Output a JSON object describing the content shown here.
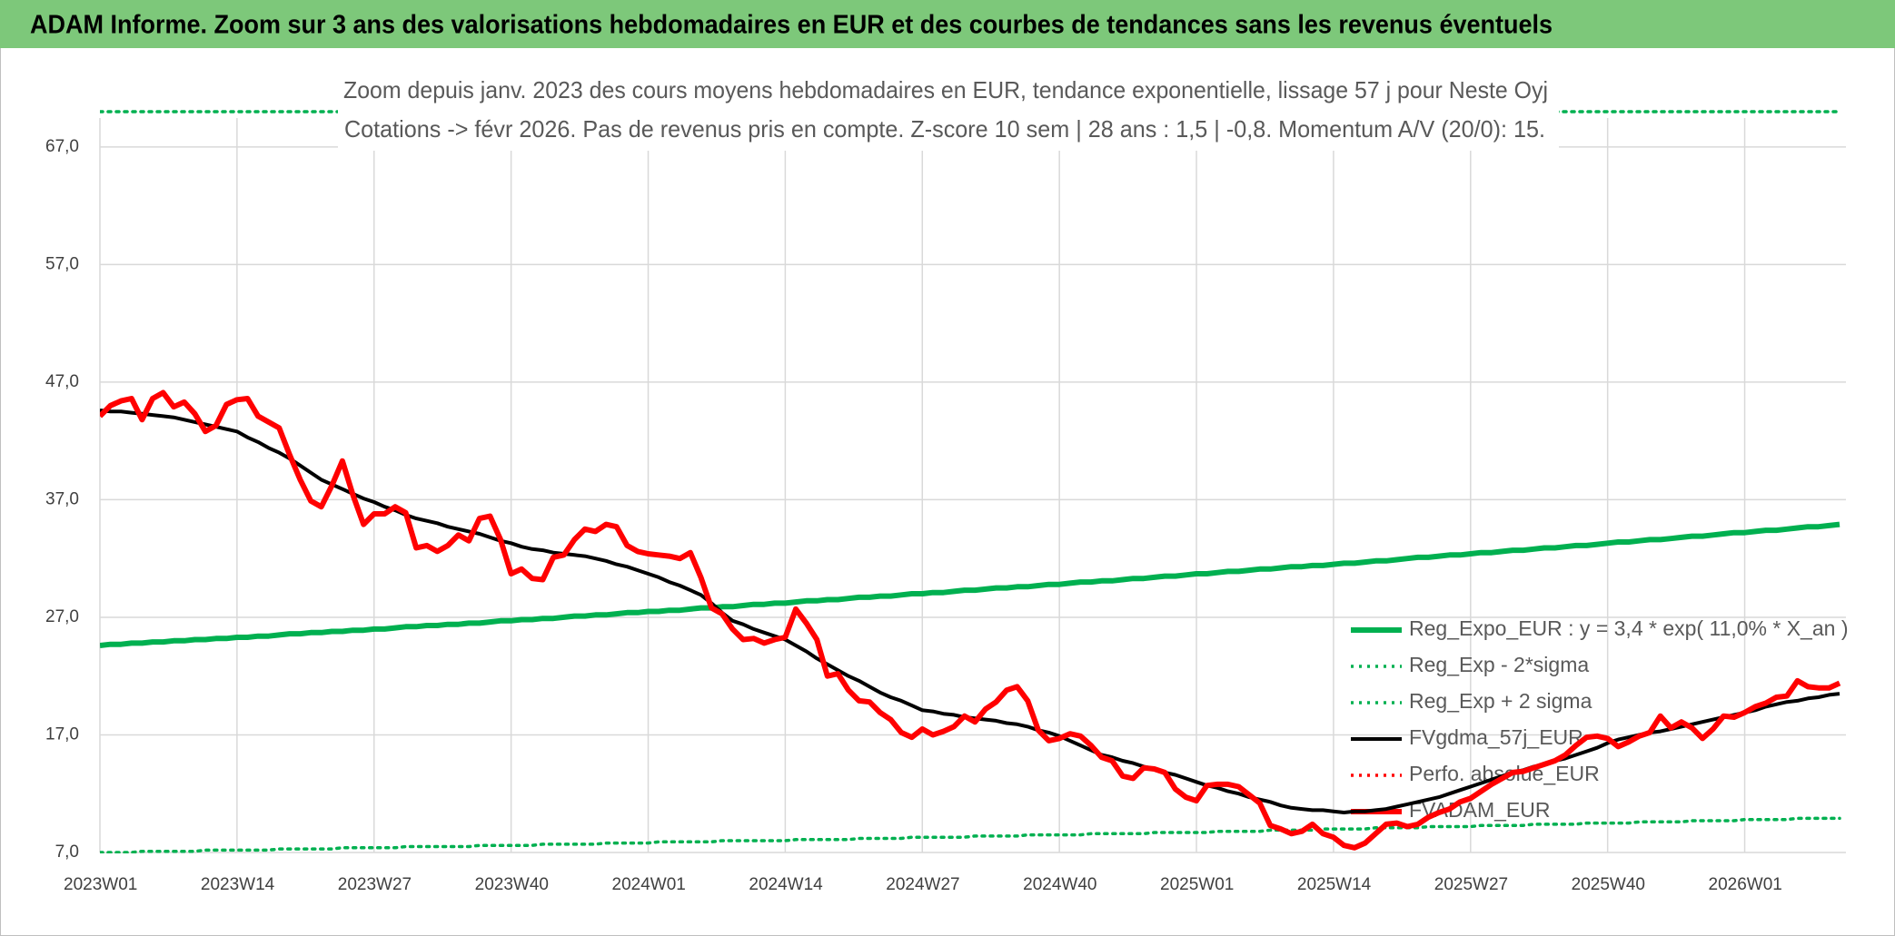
{
  "chart_data": {
    "type": "line",
    "title": "ADAM Informe. Zoom sur 3 ans des valorisations hebdomadaires en EUR et des courbes de tendances sans les revenus éventuels",
    "subtitle": [
      "Zoom depuis janv. 2023 des cours moyens hebdomadaires en EUR, tendance exponentielle, lissage 57 j pour Neste Oyj",
      "Cotations -> févr 2026. Pas de revenus pris en compte. Z-score 10 sem | 28 ans : 1,5 | -0,8. Momentum A/V (20/0): 15."
    ],
    "categories": [
      "2023W01",
      null,
      null,
      null,
      null,
      null,
      null,
      null,
      null,
      null,
      null,
      null,
      null,
      "2023W14",
      null,
      null,
      null,
      null,
      null,
      null,
      null,
      null,
      null,
      null,
      null,
      null,
      "2023W27",
      null,
      null,
      null,
      null,
      null,
      null,
      null,
      null,
      null,
      null,
      null,
      null,
      "2023W40",
      null,
      null,
      null,
      null,
      null,
      null,
      null,
      null,
      null,
      null,
      null,
      null,
      "2024W01",
      null,
      null,
      null,
      null,
      null,
      null,
      null,
      null,
      null,
      null,
      null,
      null,
      "2024W14",
      null,
      null,
      null,
      null,
      null,
      null,
      null,
      null,
      null,
      null,
      null,
      null,
      "2024W27",
      null,
      null,
      null,
      null,
      null,
      null,
      null,
      null,
      null,
      null,
      null,
      null,
      "2024W40",
      null,
      null,
      null,
      null,
      null,
      null,
      null,
      null,
      null,
      null,
      null,
      null,
      "2025W01",
      null,
      null,
      null,
      null,
      null,
      null,
      null,
      null,
      null,
      null,
      null,
      null,
      "2025W14",
      null,
      null,
      null,
      null,
      null,
      null,
      null,
      null,
      null,
      null,
      null,
      null,
      "2025W27",
      null,
      null,
      null,
      null,
      null,
      null,
      null,
      null,
      null,
      null,
      null,
      null,
      "2025W40",
      null,
      null,
      null,
      null,
      null,
      null,
      null,
      null,
      null,
      null,
      null,
      null,
      "2026W01",
      null,
      null,
      null,
      null,
      null,
      null,
      null,
      null,
      null
    ],
    "ylim": [
      7,
      71
    ],
    "yticks": [
      {
        "value": 7,
        "label": "7,0"
      },
      {
        "value": 17,
        "label": "17,0"
      },
      {
        "value": 27,
        "label": "27,0"
      },
      {
        "value": 37,
        "label": "37,0"
      },
      {
        "value": 47,
        "label": "47,0"
      },
      {
        "value": 57,
        "label": "57,0"
      },
      {
        "value": 67,
        "label": "67,0"
      }
    ],
    "grid": true,
    "legend": "lower right",
    "series": [
      {
        "name": "Reg_Expo_EUR : y = 3,4 * exp( 11,0% *  X_an )",
        "color": "#00b050",
        "line_style": "thick",
        "values": [
          24.6,
          24.7,
          24.7,
          24.8,
          24.8,
          24.9,
          24.9,
          25.0,
          25.0,
          25.1,
          25.1,
          25.2,
          25.2,
          25.3,
          25.3,
          25.4,
          25.4,
          25.5,
          25.6,
          25.6,
          25.7,
          25.7,
          25.8,
          25.8,
          25.9,
          25.9,
          26.0,
          26.0,
          26.1,
          26.2,
          26.2,
          26.3,
          26.3,
          26.4,
          26.4,
          26.5,
          26.5,
          26.6,
          26.7,
          26.7,
          26.8,
          26.8,
          26.9,
          26.9,
          27.0,
          27.1,
          27.1,
          27.2,
          27.2,
          27.3,
          27.4,
          27.4,
          27.5,
          27.5,
          27.6,
          27.6,
          27.7,
          27.8,
          27.8,
          27.9,
          27.9,
          28.0,
          28.1,
          28.1,
          28.2,
          28.2,
          28.3,
          28.4,
          28.4,
          28.5,
          28.5,
          28.6,
          28.7,
          28.7,
          28.8,
          28.8,
          28.9,
          29.0,
          29.0,
          29.1,
          29.1,
          29.2,
          29.3,
          29.3,
          29.4,
          29.5,
          29.5,
          29.6,
          29.6,
          29.7,
          29.8,
          29.8,
          29.9,
          30.0,
          30.0,
          30.1,
          30.1,
          30.2,
          30.3,
          30.3,
          30.4,
          30.5,
          30.5,
          30.6,
          30.7,
          30.7,
          30.8,
          30.9,
          30.9,
          31.0,
          31.1,
          31.1,
          31.2,
          31.3,
          31.3,
          31.4,
          31.4,
          31.5,
          31.6,
          31.6,
          31.7,
          31.8,
          31.8,
          31.9,
          32.0,
          32.1,
          32.1,
          32.2,
          32.3,
          32.3,
          32.4,
          32.5,
          32.5,
          32.6,
          32.7,
          32.7,
          32.8,
          32.9,
          32.9,
          33.0,
          33.1,
          33.1,
          33.2,
          33.3,
          33.4,
          33.4,
          33.5,
          33.6,
          33.6,
          33.7,
          33.8,
          33.9,
          33.9,
          34.0,
          34.1,
          34.2,
          34.2,
          34.3,
          34.4,
          34.4,
          34.5,
          34.6,
          34.7,
          34.7,
          34.8,
          34.9
        ]
      },
      {
        "name": "Reg_Exp - 2*sigma",
        "color": "#00b050",
        "line_style": "dotted",
        "values": [
          7.0,
          7.0,
          7.0,
          7.0,
          7.1,
          7.1,
          7.1,
          7.1,
          7.1,
          7.1,
          7.2,
          7.2,
          7.2,
          7.2,
          7.2,
          7.2,
          7.2,
          7.3,
          7.3,
          7.3,
          7.3,
          7.3,
          7.3,
          7.4,
          7.4,
          7.4,
          7.4,
          7.4,
          7.4,
          7.5,
          7.5,
          7.5,
          7.5,
          7.5,
          7.5,
          7.5,
          7.6,
          7.6,
          7.6,
          7.6,
          7.6,
          7.6,
          7.7,
          7.7,
          7.7,
          7.7,
          7.7,
          7.7,
          7.8,
          7.8,
          7.8,
          7.8,
          7.8,
          7.9,
          7.9,
          7.9,
          7.9,
          7.9,
          7.9,
          8.0,
          8.0,
          8.0,
          8.0,
          8.0,
          8.0,
          8.0,
          8.1,
          8.1,
          8.1,
          8.1,
          8.1,
          8.1,
          8.2,
          8.2,
          8.2,
          8.2,
          8.2,
          8.3,
          8.3,
          8.3,
          8.3,
          8.3,
          8.3,
          8.4,
          8.4,
          8.4,
          8.4,
          8.4,
          8.5,
          8.5,
          8.5,
          8.5,
          8.5,
          8.5,
          8.6,
          8.6,
          8.6,
          8.6,
          8.6,
          8.6,
          8.7,
          8.7,
          8.7,
          8.7,
          8.7,
          8.7,
          8.8,
          8.8,
          8.8,
          8.8,
          8.8,
          8.9,
          8.9,
          8.9,
          8.9,
          8.9,
          9.0,
          9.0,
          9.0,
          9.0,
          9.0,
          9.1,
          9.1,
          9.1,
          9.1,
          9.1,
          9.2,
          9.2,
          9.2,
          9.2,
          9.2,
          9.3,
          9.3,
          9.3,
          9.3,
          9.3,
          9.4,
          9.4,
          9.4,
          9.4,
          9.4,
          9.5,
          9.5,
          9.5,
          9.5,
          9.5,
          9.6,
          9.6,
          9.6,
          9.6,
          9.6,
          9.7,
          9.7,
          9.7,
          9.7,
          9.7,
          9.8,
          9.8,
          9.8,
          9.8,
          9.8,
          9.9,
          9.9,
          9.9,
          9.9,
          9.9
        ]
      },
      {
        "name": "Reg_Exp + 2 sigma",
        "color": "#00b050",
        "line_style": "dotted",
        "values": [
          70,
          70,
          70,
          70,
          70,
          70,
          70,
          70,
          70,
          70,
          70,
          70,
          70,
          70,
          70,
          70,
          70,
          70,
          70,
          70,
          70,
          70,
          70,
          70,
          70,
          70,
          70,
          70,
          70,
          70,
          70,
          70,
          70,
          70,
          70,
          70,
          70,
          70,
          70,
          70,
          70,
          70,
          70,
          70,
          70,
          70,
          70,
          70,
          70,
          70,
          70,
          70,
          70,
          70,
          70,
          70,
          70,
          70,
          70,
          70,
          70,
          70,
          70,
          70,
          70,
          70,
          70,
          70,
          70,
          70,
          70,
          70,
          70,
          70,
          70,
          70,
          70,
          70,
          70,
          70,
          70,
          70,
          70,
          70,
          70,
          70,
          70,
          70,
          70,
          70,
          70,
          70,
          70,
          70,
          70,
          70,
          70,
          70,
          70,
          70,
          70,
          70,
          70,
          70,
          70,
          70,
          70,
          70,
          70,
          70,
          70,
          70,
          70,
          70,
          70,
          70,
          70,
          70,
          70,
          70,
          70,
          70,
          70,
          70,
          70,
          70,
          70,
          70,
          70,
          70,
          70,
          70,
          70,
          70,
          70,
          70,
          70,
          70,
          70,
          70,
          70,
          70,
          70,
          70,
          70,
          70,
          70,
          70,
          70,
          70,
          70,
          70,
          70,
          70,
          70,
          70,
          70,
          70,
          70,
          70,
          70,
          70,
          70,
          70,
          70,
          70
        ]
      },
      {
        "name": "FVgdma_57j_EUR",
        "color": "#000000",
        "line_style": "medium",
        "values": [
          44.6,
          44.5,
          44.5,
          44.4,
          44.3,
          44.2,
          44.1,
          44.0,
          43.8,
          43.6,
          43.4,
          43.2,
          43.0,
          42.8,
          42.3,
          41.9,
          41.4,
          41.0,
          40.5,
          39.9,
          39.3,
          38.7,
          38.3,
          37.9,
          37.5,
          37.1,
          36.8,
          36.4,
          36.1,
          35.7,
          35.4,
          35.2,
          35.0,
          34.7,
          34.5,
          34.3,
          34.1,
          33.8,
          33.5,
          33.3,
          33.0,
          32.8,
          32.7,
          32.5,
          32.4,
          32.3,
          32.2,
          32.0,
          31.8,
          31.5,
          31.3,
          31.0,
          30.7,
          30.4,
          30.0,
          29.7,
          29.3,
          28.9,
          28.2,
          27.4,
          26.7,
          26.4,
          26.0,
          25.7,
          25.4,
          25.1,
          24.6,
          24.1,
          23.5,
          23.0,
          22.5,
          22.0,
          21.6,
          21.1,
          20.6,
          20.2,
          19.9,
          19.5,
          19.1,
          19.0,
          18.8,
          18.7,
          18.5,
          18.4,
          18.3,
          18.2,
          18.0,
          17.9,
          17.7,
          17.4,
          17.2,
          16.9,
          16.5,
          16.1,
          15.7,
          15.3,
          15.1,
          14.8,
          14.6,
          14.3,
          14.1,
          13.8,
          13.6,
          13.3,
          13.0,
          12.7,
          12.5,
          12.2,
          12.0,
          11.7,
          11.5,
          11.3,
          11.0,
          10.8,
          10.7,
          10.6,
          10.6,
          10.5,
          10.4,
          10.5,
          10.5,
          10.6,
          10.7,
          10.9,
          11.1,
          11.3,
          11.5,
          11.7,
          12.0,
          12.3,
          12.6,
          12.9,
          13.2,
          13.5,
          13.8,
          14.0,
          14.3,
          14.5,
          14.8,
          15.0,
          15.3,
          15.6,
          15.9,
          16.3,
          16.6,
          16.8,
          17.0,
          17.2,
          17.3,
          17.5,
          17.7,
          17.9,
          18.1,
          18.3,
          18.5,
          18.7,
          18.9,
          19.1,
          19.4,
          19.6,
          19.8,
          19.9,
          20.1,
          20.2,
          20.4,
          20.5
        ]
      },
      {
        "name": "Perfo. absolue_EUR",
        "color": "#ff0000",
        "line_style": "dotted",
        "values": [
          null,
          null,
          null,
          null,
          null,
          null,
          null,
          null,
          null,
          null,
          null,
          null,
          null,
          null,
          null,
          null,
          null,
          null,
          null,
          null,
          null,
          null,
          null,
          null,
          null,
          null,
          null,
          null,
          null,
          null,
          null,
          null,
          null,
          null,
          null,
          null,
          null,
          null,
          null,
          null,
          null,
          null,
          null,
          null,
          null,
          null,
          null,
          null,
          null,
          null,
          null,
          null,
          null,
          null,
          null,
          null,
          null,
          null,
          null,
          null,
          null,
          null,
          null,
          null,
          null,
          null,
          null,
          null,
          null,
          null,
          null,
          null,
          null,
          null,
          null,
          null,
          null,
          null,
          null,
          null,
          null,
          null,
          null,
          null,
          null,
          null,
          null,
          null,
          null,
          null,
          null,
          null,
          null,
          null,
          null,
          null,
          null,
          null,
          null,
          null,
          null,
          null,
          null,
          null,
          null,
          null,
          null,
          null,
          null,
          null,
          null,
          null,
          null,
          null,
          null,
          null,
          null,
          null,
          null,
          null,
          null,
          null,
          null,
          null,
          null,
          null,
          null,
          null,
          null,
          null,
          null,
          null,
          null,
          null,
          null,
          null,
          null,
          null,
          null,
          null,
          null,
          null,
          null,
          null,
          null,
          null,
          null,
          null,
          null,
          null,
          null,
          null,
          null,
          null,
          null,
          null,
          null,
          null,
          null,
          null,
          null,
          null,
          null,
          null,
          null,
          null
        ]
      },
      {
        "name": "FVADAM_EUR",
        "color": "#ff0000",
        "line_style": "thick",
        "values": [
          44.1,
          45.0,
          45.4,
          45.6,
          43.8,
          45.6,
          46.1,
          44.9,
          45.3,
          44.3,
          42.8,
          43.3,
          45.1,
          45.5,
          45.6,
          44.1,
          43.6,
          43.1,
          40.8,
          38.7,
          36.9,
          36.4,
          38.2,
          40.3,
          37.4,
          34.9,
          35.8,
          35.8,
          36.4,
          35.9,
          32.9,
          33.1,
          32.6,
          33.1,
          34.0,
          33.5,
          35.4,
          35.6,
          33.6,
          30.7,
          31.1,
          30.3,
          30.2,
          32.1,
          32.3,
          33.6,
          34.5,
          34.3,
          34.9,
          34.7,
          33.1,
          32.6,
          32.4,
          32.3,
          32.2,
          32.0,
          32.5,
          30.4,
          27.8,
          27.3,
          26.0,
          25.1,
          25.2,
          24.8,
          25.1,
          25.3,
          27.7,
          26.5,
          25.1,
          22.0,
          22.2,
          20.8,
          19.9,
          19.8,
          18.9,
          18.3,
          17.2,
          16.8,
          17.5,
          17.0,
          17.3,
          17.7,
          18.6,
          18.1,
          19.2,
          19.8,
          20.8,
          21.1,
          19.9,
          17.4,
          16.5,
          16.7,
          17.1,
          16.9,
          16.1,
          15.1,
          14.8,
          13.5,
          13.3,
          14.2,
          14.1,
          13.8,
          12.4,
          11.7,
          11.4,
          12.7,
          12.8,
          12.8,
          12.6,
          11.9,
          11.2,
          9.3,
          9.0,
          8.6,
          8.8,
          9.4,
          8.6,
          8.3,
          7.6,
          7.4,
          7.8,
          8.6,
          9.4,
          9.5,
          9.2,
          9.4,
          10.0,
          10.4,
          10.7,
          11.3,
          11.6,
          12.2,
          12.8,
          13.3,
          13.8,
          13.9,
          14.2,
          14.5,
          14.8,
          15.3,
          16.1,
          16.8,
          16.9,
          16.7,
          16.0,
          16.4,
          16.9,
          17.2,
          18.6,
          17.6,
          18.1,
          17.6,
          16.7,
          17.5,
          18.6,
          18.5,
          18.9,
          19.4,
          19.7,
          20.2,
          20.3,
          21.6,
          21.1,
          21.0,
          21.0,
          21.4
        ]
      }
    ]
  }
}
